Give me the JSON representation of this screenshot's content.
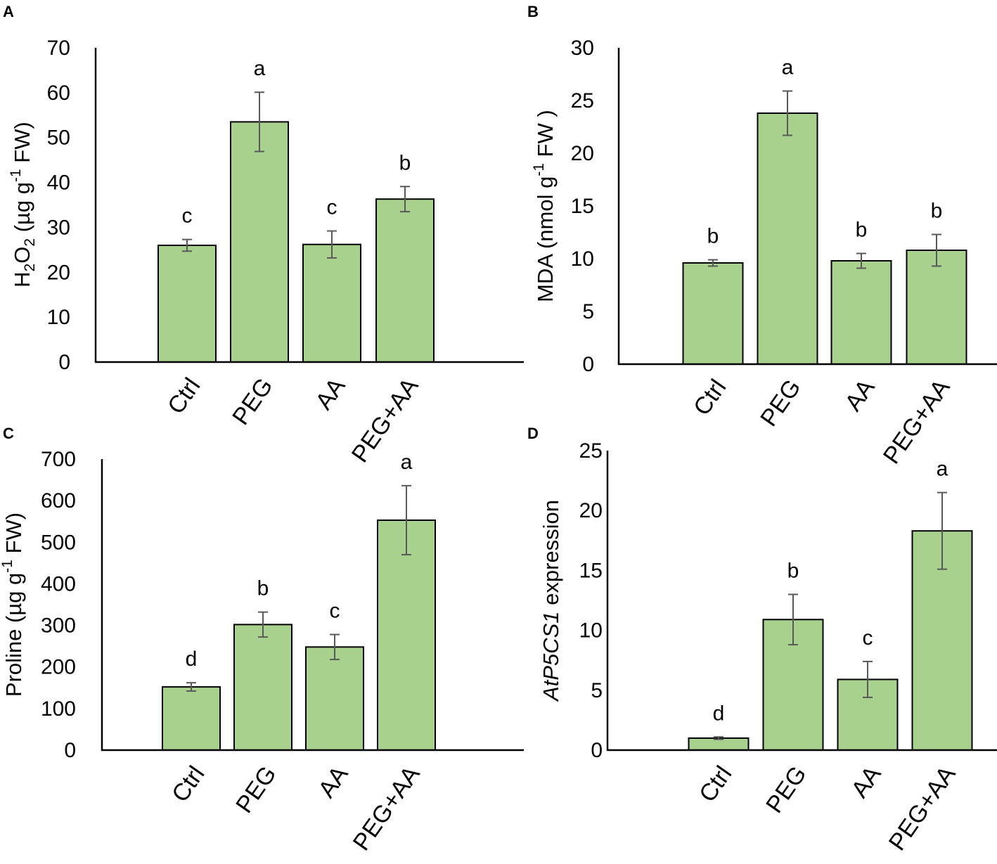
{
  "chart_data": [
    {
      "panel": "A",
      "type": "bar",
      "categories": [
        "Ctrl",
        "PEG",
        "AA",
        "PEG+AA"
      ],
      "values": [
        26,
        53.5,
        26.2,
        36.3
      ],
      "errors": [
        1.3,
        6.6,
        3,
        2.8
      ],
      "letters": [
        "c",
        "a",
        "c",
        "b"
      ],
      "ylabel_parts": [
        "H",
        "2",
        "O",
        "2",
        " (µg g",
        "-1",
        " FW)"
      ],
      "ylim": [
        0,
        70
      ],
      "yticks": [
        0,
        10,
        20,
        30,
        40,
        50,
        60,
        70
      ]
    },
    {
      "panel": "B",
      "type": "bar",
      "categories": [
        "Ctrl",
        "PEG",
        "AA",
        "PEG+AA"
      ],
      "values": [
        9.6,
        23.8,
        9.8,
        10.8
      ],
      "errors": [
        0.3,
        2.1,
        0.7,
        1.5
      ],
      "letters": [
        "b",
        "a",
        "b",
        "b"
      ],
      "ylabel_parts": [
        "MDA (nmol g",
        "-1",
        " FW )"
      ],
      "ylim": [
        0,
        30
      ],
      "yticks": [
        0,
        5,
        10,
        15,
        20,
        25,
        30
      ]
    },
    {
      "panel": "C",
      "type": "bar",
      "categories": [
        "Ctrl",
        "PEG",
        "AA",
        "PEG+AA"
      ],
      "values": [
        152,
        302,
        248,
        553
      ],
      "errors": [
        10,
        30,
        30,
        83
      ],
      "letters": [
        "d",
        "b",
        "c",
        "a"
      ],
      "ylabel_parts": [
        "Proline (µg g",
        "-1",
        " FW)"
      ],
      "ylim": [
        0,
        700
      ],
      "yticks": [
        0,
        100,
        200,
        300,
        400,
        500,
        600,
        700
      ]
    },
    {
      "panel": "D",
      "type": "bar",
      "categories": [
        "Ctrl",
        "PEG",
        "AA",
        "PEG+AA"
      ],
      "values": [
        1,
        10.9,
        5.9,
        18.3
      ],
      "errors": [
        0.1,
        2.1,
        1.5,
        3.2
      ],
      "letters": [
        "d",
        "b",
        "c",
        "a"
      ],
      "ylabel_parts": [
        "AtP5CS1",
        " expression"
      ],
      "ylim": [
        0,
        25
      ],
      "yticks": [
        0,
        5,
        10,
        15,
        20,
        25
      ]
    }
  ]
}
